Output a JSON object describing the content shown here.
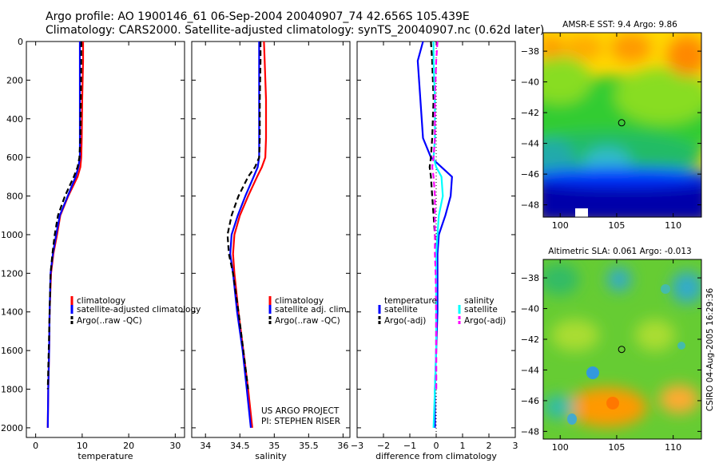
{
  "title_line1": "Argo profile: AO 1900146_61 06-Sep-2004 20040907_74 42.656S 105.439E",
  "title_line2": "Climatology: CARS2000. Satellite-adjusted climatology: synTS_20040907.nc (0.62d later)",
  "footer_label": "CSIRO 04-Aug-2005 16:29:36",
  "project_line1": "US ARGO PROJECT",
  "project_line2": "PI: STEPHEN RISER",
  "colors": {
    "climatology": "#ff0000",
    "satellite": "#0000ff",
    "argo": "#000000",
    "sal_satellite": "#00ffff",
    "sal_argo": "#ff00ff"
  },
  "chart_data": [
    {
      "type": "line",
      "xlabel": "temperature",
      "xlim": [
        -2,
        32
      ],
      "xticks": [
        0,
        10,
        20,
        30
      ],
      "ylim": [
        2050,
        0
      ],
      "yticks": [
        0,
        200,
        400,
        600,
        800,
        1000,
        1200,
        1400,
        1600,
        1800,
        2000
      ],
      "legend_entries": [
        "climatology",
        "satellite-adjusted climatology",
        "Argo(..raw -QC)"
      ],
      "series": [
        {
          "name": "climatology",
          "x": [
            10.2,
            10.2,
            10.0,
            9.9,
            9.8,
            9.6,
            9.0,
            7.0,
            5.3,
            4.6,
            3.8,
            3.3,
            3.0,
            2.9,
            2.7,
            2.6
          ],
          "y": [
            0,
            100,
            300,
            500,
            600,
            650,
            700,
            800,
            900,
            1000,
            1100,
            1200,
            1400,
            1600,
            1800,
            2000
          ]
        },
        {
          "name": "satellite-adjusted climatology",
          "x": [
            9.5,
            9.5,
            9.5,
            9.5,
            9.5,
            9.2,
            8.6,
            6.9,
            5.2,
            4.4,
            3.7,
            3.2,
            3.0,
            2.9,
            2.7,
            2.6
          ],
          "y": [
            0,
            100,
            300,
            500,
            600,
            650,
            700,
            800,
            900,
            1000,
            1100,
            1200,
            1400,
            1600,
            1800,
            2000
          ]
        },
        {
          "name": "Argo(..raw -QC)",
          "x": [
            9.8,
            9.8,
            9.7,
            9.6,
            9.4,
            9.0,
            8.2,
            6.3,
            4.8,
            4.1,
            3.6,
            3.2,
            3.0,
            2.8,
            2.6
          ],
          "y": [
            0,
            100,
            300,
            500,
            600,
            650,
            700,
            800,
            900,
            1000,
            1100,
            1200,
            1400,
            1600,
            1800
          ]
        }
      ]
    },
    {
      "type": "line",
      "xlabel": "salinity",
      "xlim": [
        33.8,
        36.1
      ],
      "xticks": [
        34,
        34.5,
        35,
        35.5,
        36
      ],
      "ylim": [
        2050,
        0
      ],
      "legend_entries": [
        "climatology",
        "satellite adj. clim.",
        "Argo(..raw -QC)"
      ],
      "series": [
        {
          "name": "climatology",
          "x": [
            34.85,
            34.86,
            34.88,
            34.88,
            34.87,
            34.82,
            34.75,
            34.62,
            34.5,
            34.42,
            34.4,
            34.42,
            34.48,
            34.55,
            34.62,
            34.68
          ],
          "y": [
            0,
            100,
            300,
            500,
            600,
            650,
            700,
            800,
            900,
            1000,
            1100,
            1200,
            1400,
            1600,
            1800,
            2000
          ]
        },
        {
          "name": "satellite adj. clim.",
          "x": [
            34.78,
            34.78,
            34.78,
            34.78,
            34.78,
            34.76,
            34.7,
            34.58,
            34.47,
            34.38,
            34.36,
            34.4,
            34.46,
            34.54,
            34.6,
            34.66
          ],
          "y": [
            0,
            100,
            300,
            500,
            600,
            650,
            700,
            800,
            900,
            1000,
            1100,
            1200,
            1400,
            1600,
            1800,
            2000
          ]
        },
        {
          "name": "Argo(..raw -QC)",
          "x": [
            34.8,
            34.8,
            34.79,
            34.79,
            34.78,
            34.72,
            34.62,
            34.48,
            34.38,
            34.32,
            34.34,
            34.4,
            34.48,
            34.55,
            34.62
          ],
          "y": [
            0,
            100,
            300,
            500,
            600,
            650,
            700,
            800,
            900,
            1000,
            1100,
            1200,
            1400,
            1600,
            1800
          ]
        }
      ]
    },
    {
      "type": "line",
      "xlabel": "difference from climatology",
      "xlim": [
        -3,
        3
      ],
      "xticks": [
        -3,
        -2,
        -1,
        0,
        1,
        2,
        3
      ],
      "ylim": [
        2050,
        0
      ],
      "legend_left_header": "temperature",
      "legend_left": [
        "satellite",
        "Argo(-adj)"
      ],
      "legend_right_header": "salinity",
      "legend_right": [
        "satellite",
        "Argo(-adj)"
      ],
      "series": [
        {
          "name": "temperature satellite",
          "x": [
            -0.5,
            -0.7,
            -0.6,
            -0.5,
            -0.2,
            0.2,
            0.6,
            0.55,
            0.35,
            0.1,
            0.05,
            0.05,
            0.05,
            0.0,
            -0.05,
            -0.05
          ],
          "y": [
            0,
            100,
            300,
            500,
            600,
            650,
            700,
            800,
            900,
            1000,
            1100,
            1200,
            1400,
            1600,
            1800,
            2000
          ]
        },
        {
          "name": "temperature Argo(-adj)",
          "x": [
            -0.2,
            -0.15,
            -0.1,
            -0.15,
            -0.2,
            -0.25,
            -0.2,
            -0.15,
            -0.1,
            -0.05,
            0.0,
            0.0,
            0.0,
            0.0,
            0.0
          ],
          "y": [
            0,
            100,
            300,
            500,
            600,
            650,
            700,
            800,
            900,
            1000,
            1100,
            1200,
            1400,
            1600,
            1800
          ]
        },
        {
          "name": "salinity satellite",
          "x": [
            -0.1,
            -0.1,
            -0.05,
            -0.05,
            -0.1,
            0.0,
            0.2,
            0.25,
            0.1,
            0.05,
            0.0,
            0.0,
            0.0,
            0.0,
            -0.05,
            -0.1
          ],
          "y": [
            0,
            100,
            300,
            500,
            600,
            650,
            700,
            800,
            900,
            1000,
            1100,
            1200,
            1400,
            1600,
            1800,
            2000
          ]
        },
        {
          "name": "salinity Argo(-adj)",
          "x": [
            0.05,
            0.0,
            -0.05,
            -0.05,
            -0.1,
            -0.15,
            -0.1,
            -0.05,
            -0.05,
            -0.05,
            -0.05,
            -0.02,
            0.0,
            0.0,
            0.0
          ],
          "y": [
            0,
            100,
            300,
            500,
            600,
            650,
            700,
            800,
            900,
            1000,
            1100,
            1200,
            1400,
            1600,
            1800
          ]
        }
      ]
    },
    {
      "type": "heatmap",
      "title": "AMSR-E SST: 9.4 Argo: 9.86",
      "xlim": [
        98.5,
        112.5
      ],
      "xticks": [
        100,
        105,
        110
      ],
      "ylim": [
        -48.8,
        -36.8
      ],
      "yticks": [
        -38,
        -40,
        -42,
        -44,
        -46,
        -48
      ],
      "marker": {
        "lon": 105.44,
        "lat": -42.66
      }
    },
    {
      "type": "heatmap",
      "title": "Altimetric SLA: 0.061 Argo: -0.013",
      "xlim": [
        98.5,
        112.5
      ],
      "xticks": [
        100,
        105,
        110
      ],
      "ylim": [
        -48.5,
        -36.8
      ],
      "yticks": [
        -38,
        -40,
        -42,
        -44,
        -46,
        -48
      ],
      "marker": {
        "lon": 105.44,
        "lat": -42.66
      }
    }
  ]
}
